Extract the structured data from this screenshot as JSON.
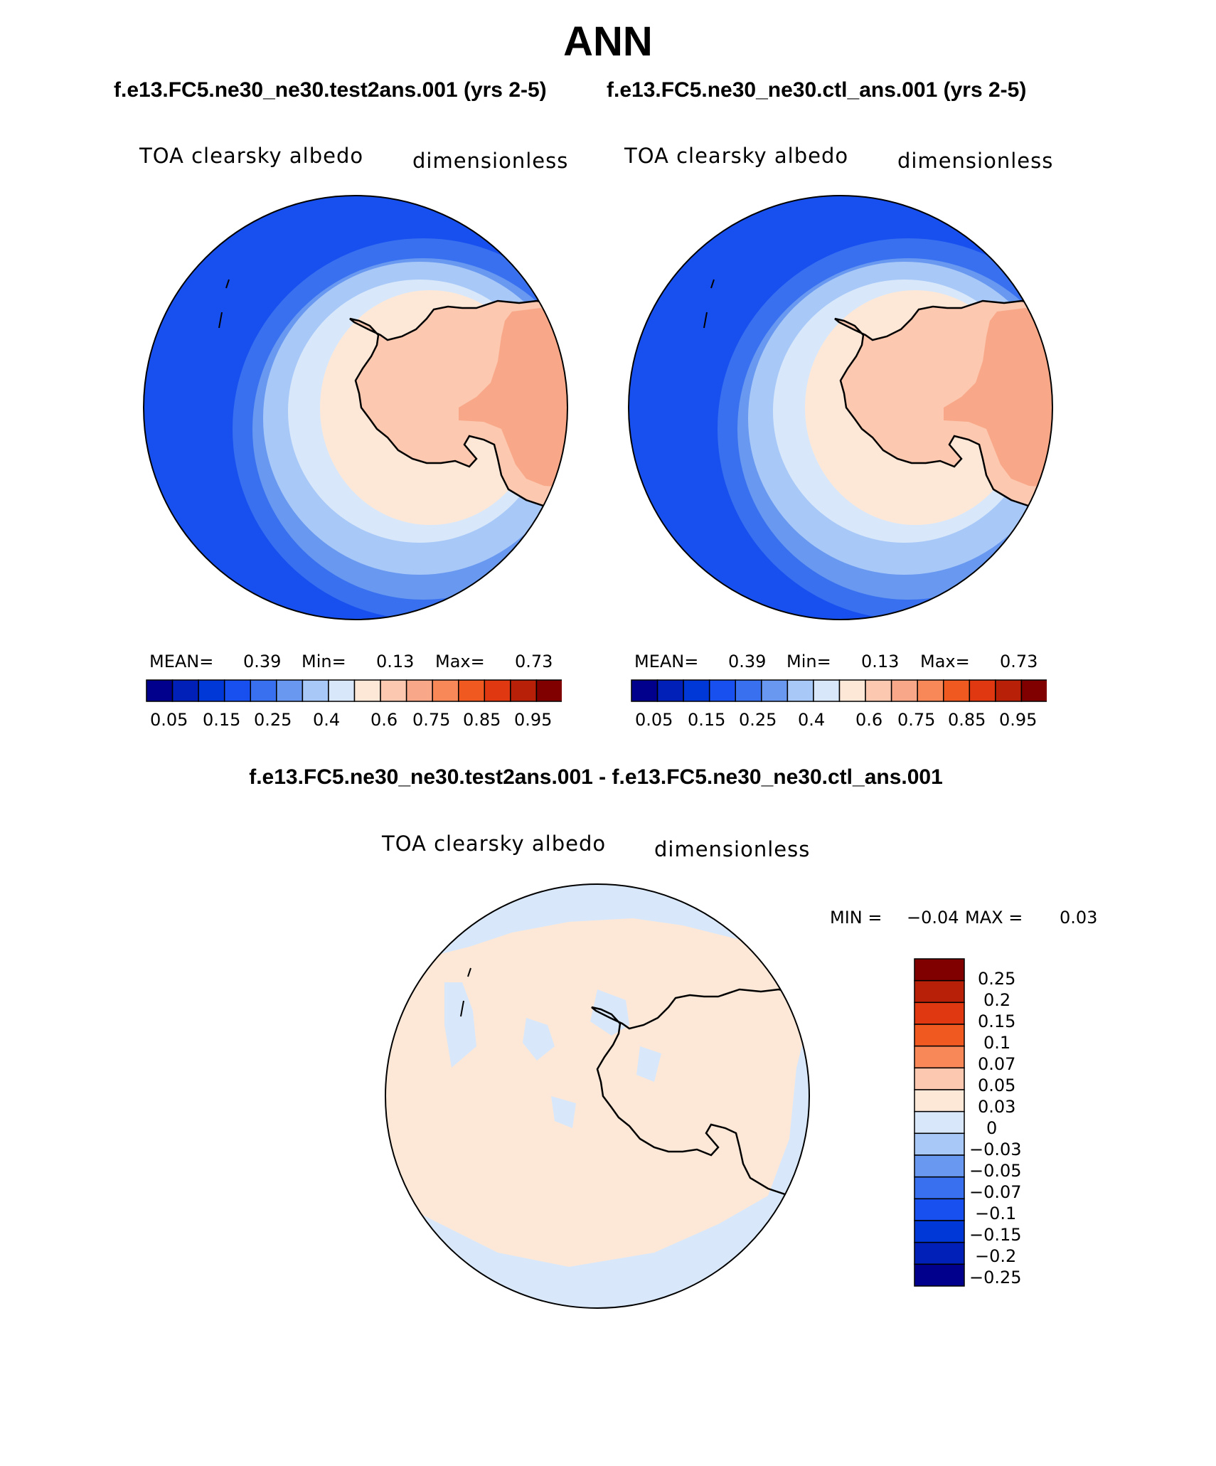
{
  "title": "ANN",
  "panels": {
    "test": {
      "case": "f.e13.FC5.ne30_ne30.test2ans.001 (yrs 2-5)",
      "variable": "TOA clearsky albedo",
      "units": "dimensionless",
      "stats": {
        "mean_label": "MEAN=",
        "mean": "0.39",
        "min_label": "Min=",
        "min": "0.13",
        "max_label": "Max=",
        "max": "0.73"
      }
    },
    "ctl": {
      "case": "f.e13.FC5.ne30_ne30.ctl_ans.001 (yrs 2-5)",
      "variable": "TOA clearsky albedo",
      "units": "dimensionless",
      "stats": {
        "mean_label": "MEAN=",
        "mean": "0.39",
        "min_label": "Min=",
        "min": "0.13",
        "max_label": "Max=",
        "max": "0.73"
      }
    },
    "diff": {
      "case": "f.e13.FC5.ne30_ne30.test2ans.001 - f.e13.FC5.ne30_ne30.ctl_ans.001",
      "variable": "TOA clearsky albedo",
      "units": "dimensionless",
      "stats": {
        "min_label": "MIN =",
        "min": "−0.04",
        "max_label": "MAX =",
        "max": "0.03"
      }
    }
  },
  "colorbars": {
    "abs": {
      "colors": [
        "#00008c",
        "#0020b8",
        "#0038d8",
        "#1850f0",
        "#3870f0",
        "#6898f0",
        "#a8c8f8",
        "#d8e8fa",
        "#fde8d8",
        "#fcc8b0",
        "#f8a888",
        "#f88858",
        "#f05a20",
        "#e03810",
        "#b82008",
        "#800000"
      ],
      "tick_labels": [
        "0.05",
        "0.15",
        "0.25",
        "0.4",
        "0.6",
        "0.75",
        "0.85",
        "0.95"
      ]
    },
    "diff": {
      "colors": [
        "#800000",
        "#b82008",
        "#e03810",
        "#f05a20",
        "#f88858",
        "#fcc8b0",
        "#fde8d8",
        "#d8e8fa",
        "#a8c8f8",
        "#6898f0",
        "#3870f0",
        "#1850f0",
        "#0038d8",
        "#0020b8",
        "#00008c"
      ],
      "tick_labels": [
        "0.25",
        "0.2",
        "0.15",
        "0.1",
        "0.07",
        "0.05",
        "0.03",
        "0",
        "−0.03",
        "−0.05",
        "−0.07",
        "−0.1",
        "−0.15",
        "−0.2",
        "−0.25"
      ]
    }
  },
  "colors": {
    "land_inner": "#f8a888",
    "land_outer": "#fcc8b0",
    "ocean_deep": "#1850f0",
    "diff_bg": "#fde8d8",
    "diff_neg": "#d8e8fa"
  }
}
